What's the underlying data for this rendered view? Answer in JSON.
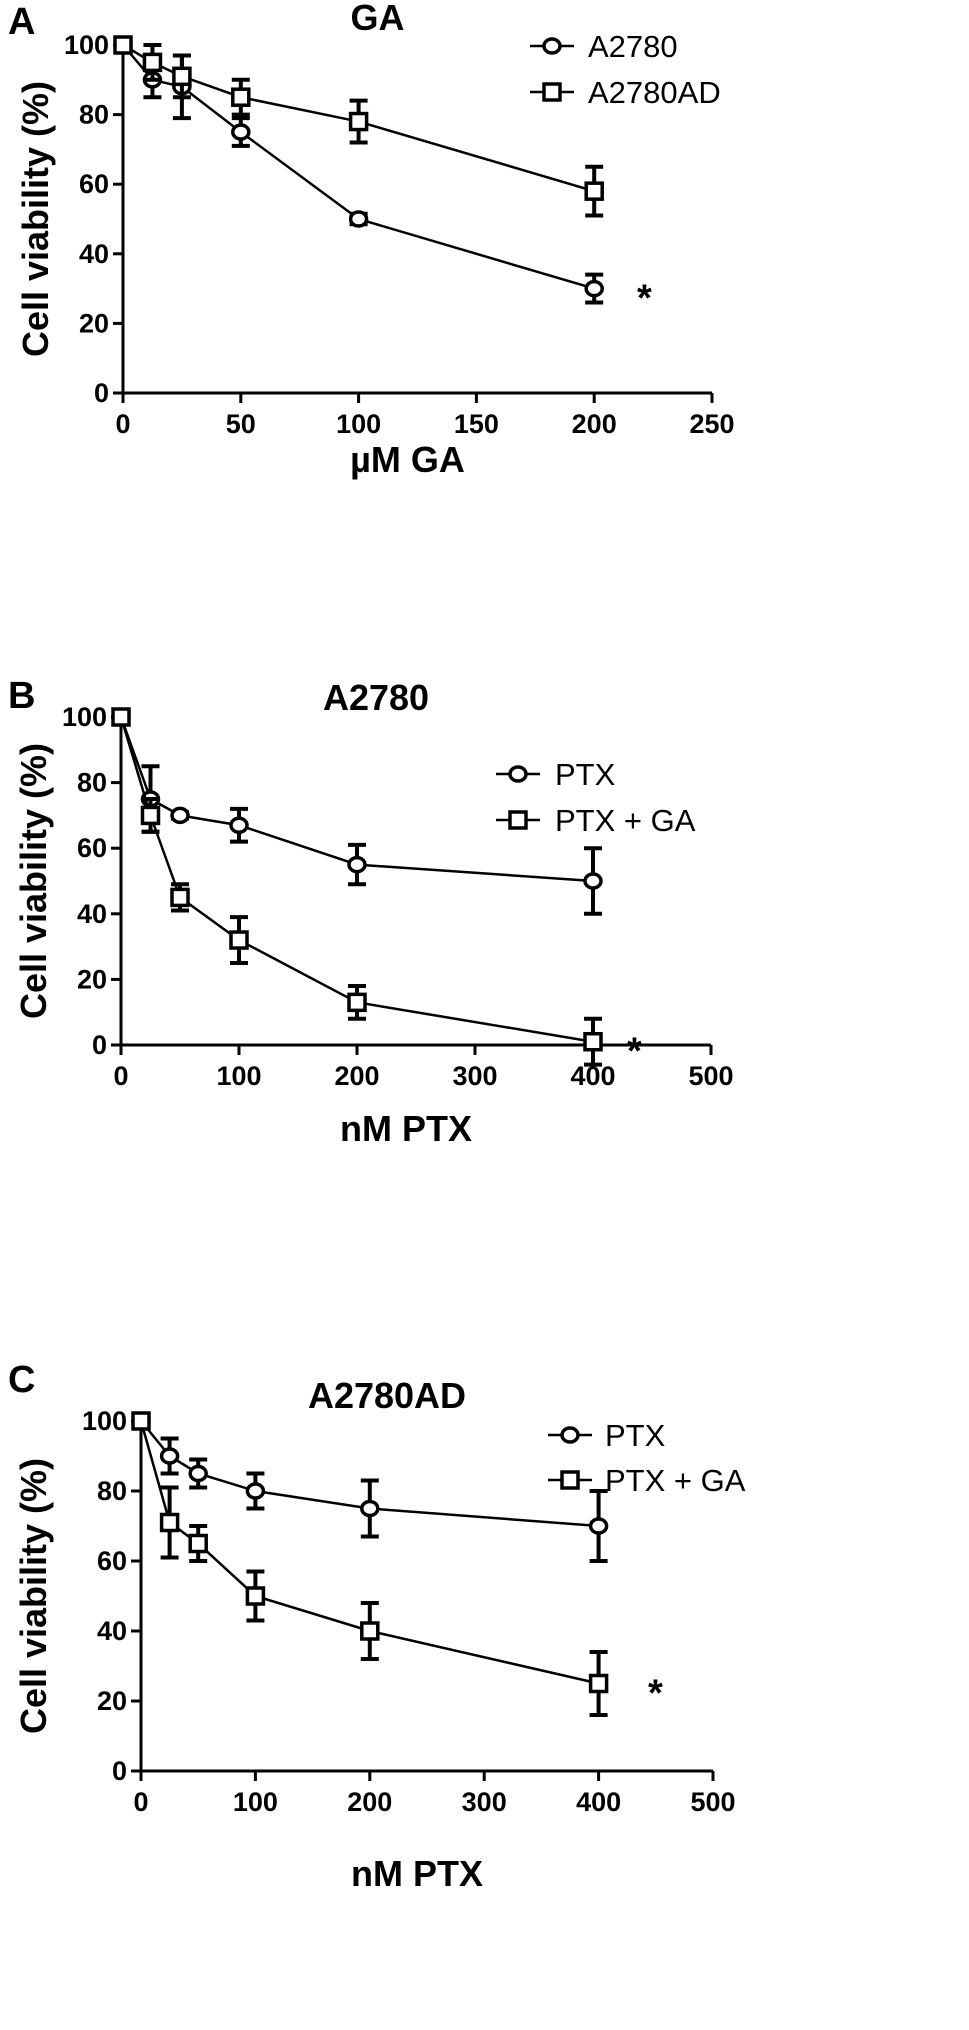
{
  "chart_data": [
    {
      "type": "line",
      "panel": "A",
      "title": "GA",
      "xlabel": "µM GA",
      "ylabel": "Cell viability (%)",
      "xlim": [
        0,
        250
      ],
      "ylim": [
        0,
        100
      ],
      "xticks": [
        0,
        50,
        100,
        150,
        200,
        250
      ],
      "yticks": [
        0,
        20,
        40,
        60,
        80,
        100
      ],
      "grid": false,
      "legend_position": "top-right",
      "annotation": "*",
      "series": [
        {
          "name": "A2780",
          "marker": "circle",
          "x": [
            0,
            12.5,
            25,
            50,
            100,
            200
          ],
          "y": [
            100,
            90,
            88,
            75,
            50,
            30
          ],
          "err": [
            0,
            5,
            9,
            4,
            1.5,
            4
          ]
        },
        {
          "name": "A2780AD",
          "marker": "square",
          "x": [
            0,
            12.5,
            25,
            50,
            100,
            200
          ],
          "y": [
            100,
            95,
            91,
            85,
            78,
            58
          ],
          "err": [
            0,
            5,
            6,
            5,
            6,
            7
          ]
        }
      ]
    },
    {
      "type": "line",
      "panel": "B",
      "title": "A2780",
      "xlabel": "nM PTX",
      "ylabel": "Cell viability (%)",
      "xlim": [
        0,
        500
      ],
      "ylim": [
        0,
        100
      ],
      "xticks": [
        0,
        100,
        200,
        300,
        400,
        500
      ],
      "yticks": [
        0,
        20,
        40,
        60,
        80,
        100
      ],
      "grid": false,
      "legend_position": "top-right",
      "annotation": "*",
      "series": [
        {
          "name": "PTX",
          "marker": "circle",
          "x": [
            0,
            25,
            50,
            100,
            200,
            400
          ],
          "y": [
            100,
            75,
            70,
            67,
            55,
            50
          ],
          "err": [
            0,
            10,
            1,
            5,
            6,
            10
          ]
        },
        {
          "name": "PTX + GA",
          "marker": "square",
          "x": [
            0,
            25,
            50,
            100,
            200,
            400
          ],
          "y": [
            100,
            70,
            45,
            32,
            13,
            1
          ],
          "err": [
            0,
            5,
            4,
            7,
            5,
            7
          ]
        }
      ]
    },
    {
      "type": "line",
      "panel": "C",
      "title": "A2780AD",
      "xlabel": "nM PTX",
      "ylabel": "Cell viability (%)",
      "xlim": [
        0,
        500
      ],
      "ylim": [
        0,
        100
      ],
      "xticks": [
        0,
        100,
        200,
        300,
        400,
        500
      ],
      "yticks": [
        0,
        20,
        40,
        60,
        80,
        100
      ],
      "grid": false,
      "legend_position": "top-right",
      "annotation": "*",
      "series": [
        {
          "name": "PTX",
          "marker": "circle",
          "x": [
            0,
            25,
            50,
            100,
            200,
            400
          ],
          "y": [
            100,
            90,
            85,
            80,
            75,
            70
          ],
          "err": [
            0,
            5,
            4,
            5,
            8,
            10
          ]
        },
        {
          "name": "PTX + GA",
          "marker": "square",
          "x": [
            0,
            25,
            50,
            100,
            200,
            400
          ],
          "y": [
            100,
            71,
            65,
            50,
            40,
            25
          ],
          "err": [
            0,
            10,
            5,
            7,
            8,
            9
          ]
        }
      ]
    }
  ]
}
